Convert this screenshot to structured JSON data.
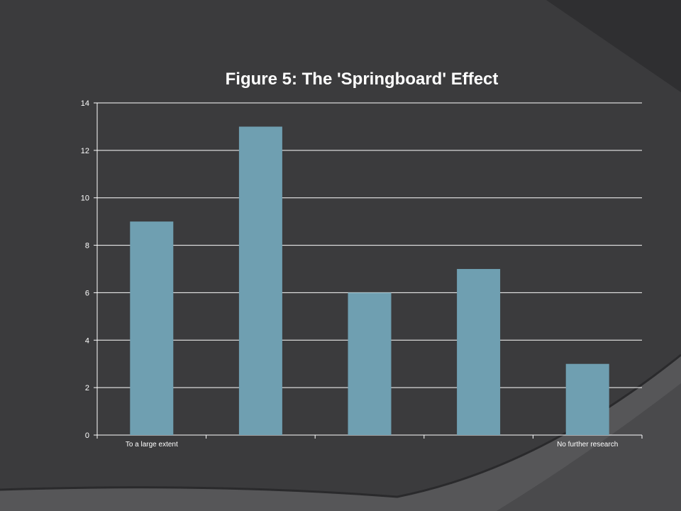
{
  "chart_data": {
    "type": "bar",
    "title": "Figure 5: The 'Springboard' Effect",
    "categories": [
      "To a large extent",
      "",
      "",
      "",
      "No further research"
    ],
    "values": [
      9,
      13,
      6,
      7,
      3
    ],
    "ylim": [
      0,
      14
    ],
    "yticks": [
      0,
      2,
      4,
      6,
      8,
      10,
      12,
      14
    ],
    "grid": true,
    "legend": "none",
    "bar_color": "#6f9fb1",
    "grid_color": "#ffffff"
  },
  "colors": {
    "background": "#3b3b3d",
    "shape_light": "#5a5a5c",
    "shape_dark": "#2e2e30"
  }
}
